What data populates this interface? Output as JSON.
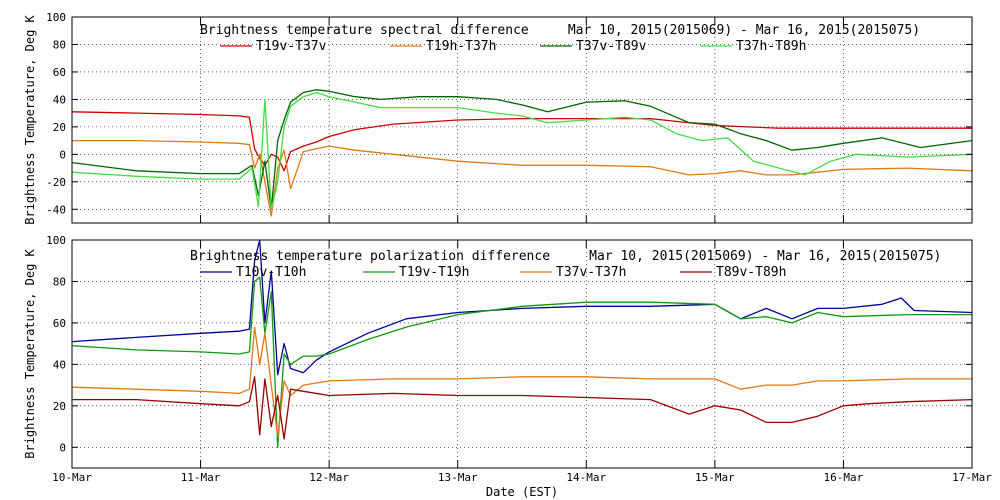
{
  "chart_data": [
    {
      "type": "line",
      "title": "Brightness temperature spectral difference     Mar 10, 2015(2015069) - Mar 16, 2015(2015075)",
      "ylabel": "Brightness Temperature, Deg K",
      "xlabel": "",
      "xlim": [
        0,
        7
      ],
      "ylim": [
        -50,
        100
      ],
      "yticks": [
        -40,
        -20,
        0,
        20,
        40,
        60,
        80,
        100
      ],
      "grid": true,
      "legend_position": "top",
      "series": [
        {
          "name": "T19v-T37v",
          "color": "#cc0000",
          "x": [
            0,
            0.5,
            1.0,
            1.3,
            1.38,
            1.42,
            1.46,
            1.5,
            1.55,
            1.6,
            1.65,
            1.7,
            1.8,
            1.9,
            2.0,
            2.2,
            2.5,
            3.0,
            3.5,
            4.0,
            4.5,
            4.7,
            5.0,
            5.5,
            6.0,
            6.5,
            7.0
          ],
          "y": [
            31,
            30,
            29,
            28,
            27,
            4,
            -3,
            -8,
            0,
            -2,
            -12,
            2,
            6,
            9,
            13,
            18,
            22,
            25,
            26,
            26,
            26,
            24,
            21,
            19,
            19,
            19,
            19
          ]
        },
        {
          "name": "T19h-T37h",
          "color": "#e07a10",
          "x": [
            0,
            0.5,
            1.0,
            1.3,
            1.38,
            1.42,
            1.46,
            1.5,
            1.55,
            1.6,
            1.65,
            1.7,
            1.8,
            1.9,
            2.0,
            2.2,
            2.5,
            3.0,
            3.5,
            4.0,
            4.5,
            4.8,
            5.0,
            5.2,
            5.4,
            5.6,
            5.8,
            6.0,
            6.5,
            7.0
          ],
          "y": [
            10,
            10,
            9,
            8,
            7,
            -10,
            0,
            -20,
            -45,
            -10,
            3,
            -25,
            2,
            4,
            6,
            3,
            0,
            -5,
            -8,
            -8,
            -9,
            -15,
            -14,
            -12,
            -15,
            -15,
            -13,
            -11,
            -10,
            -12
          ]
        },
        {
          "name": "T37v-T89v",
          "color": "#006400",
          "x": [
            0,
            0.5,
            1.0,
            1.3,
            1.4,
            1.45,
            1.5,
            1.55,
            1.6,
            1.65,
            1.7,
            1.8,
            1.9,
            2.0,
            2.2,
            2.4,
            2.7,
            3.0,
            3.3,
            3.5,
            3.7,
            4.0,
            4.3,
            4.5,
            4.8,
            5.0,
            5.2,
            5.4,
            5.6,
            5.8,
            6.0,
            6.3,
            6.6,
            7.0
          ],
          "y": [
            -6,
            -12,
            -14,
            -14,
            -8,
            -30,
            -5,
            -40,
            10,
            25,
            38,
            45,
            47,
            46,
            42,
            40,
            42,
            42,
            40,
            36,
            31,
            38,
            39,
            35,
            23,
            22,
            15,
            10,
            3,
            5,
            8,
            12,
            5,
            10
          ]
        },
        {
          "name": "T37h-T89h",
          "color": "#44dd44",
          "x": [
            0,
            0.5,
            1.0,
            1.3,
            1.4,
            1.45,
            1.5,
            1.55,
            1.6,
            1.65,
            1.7,
            1.8,
            1.9,
            2.0,
            2.2,
            2.4,
            2.7,
            3.0,
            3.3,
            3.5,
            3.7,
            4.0,
            4.3,
            4.5,
            4.7,
            4.9,
            5.1,
            5.3,
            5.5,
            5.7,
            5.9,
            6.1,
            6.5,
            7.0
          ],
          "y": [
            -13,
            -16,
            -18,
            -18,
            -10,
            -38,
            40,
            -40,
            -20,
            20,
            35,
            42,
            45,
            42,
            38,
            34,
            34,
            34,
            30,
            28,
            23,
            25,
            27,
            25,
            15,
            10,
            12,
            -5,
            -10,
            -15,
            -5,
            0,
            -2,
            0
          ]
        }
      ]
    },
    {
      "type": "line",
      "title": "Brightness temperature polarization difference     Mar 10, 2015(2015069) - Mar 16, 2015(2015075)",
      "ylabel": "Brightness Temperature, Deg K",
      "xlabel": "Date (EST)",
      "xlim": [
        0,
        7
      ],
      "ylim": [
        -10,
        100
      ],
      "yticks": [
        0,
        20,
        40,
        60,
        80,
        100
      ],
      "grid": true,
      "legend_position": "top",
      "series": [
        {
          "name": "T10v-T10h",
          "color": "#000099",
          "x": [
            0,
            0.5,
            1.0,
            1.3,
            1.38,
            1.42,
            1.46,
            1.5,
            1.55,
            1.6,
            1.65,
            1.7,
            1.8,
            1.9,
            2.0,
            2.3,
            2.6,
            3.0,
            3.5,
            4.0,
            4.5,
            5.0,
            5.2,
            5.4,
            5.6,
            5.8,
            6.0,
            6.3,
            6.45,
            6.55,
            7.0
          ],
          "y": [
            51,
            53,
            55,
            56,
            57,
            90,
            100,
            60,
            85,
            35,
            50,
            38,
            36,
            42,
            46,
            55,
            62,
            65,
            67,
            68,
            68,
            69,
            62,
            67,
            62,
            67,
            67,
            69,
            72,
            66,
            65
          ]
        },
        {
          "name": "T19v-T19h",
          "color": "#119911",
          "x": [
            0,
            0.5,
            1.0,
            1.3,
            1.38,
            1.42,
            1.46,
            1.5,
            1.55,
            1.6,
            1.65,
            1.7,
            1.8,
            1.9,
            2.0,
            2.3,
            2.6,
            3.0,
            3.5,
            4.0,
            4.5,
            5.0,
            5.2,
            5.4,
            5.6,
            5.8,
            6.0,
            6.5,
            7.0
          ],
          "y": [
            49,
            47,
            46,
            45,
            46,
            80,
            82,
            55,
            75,
            0,
            45,
            40,
            44,
            44,
            45,
            52,
            58,
            64,
            68,
            70,
            70,
            69,
            62,
            63,
            60,
            65,
            63,
            64,
            64
          ]
        },
        {
          "name": "T37v-T37h",
          "color": "#e07a10",
          "x": [
            0,
            0.5,
            1.0,
            1.3,
            1.38,
            1.42,
            1.46,
            1.5,
            1.55,
            1.6,
            1.65,
            1.7,
            1.8,
            2.0,
            2.5,
            3.0,
            3.5,
            4.0,
            4.5,
            5.0,
            5.2,
            5.4,
            5.6,
            5.8,
            6.0,
            6.5,
            7.0
          ],
          "y": [
            29,
            28,
            27,
            26,
            28,
            58,
            40,
            55,
            30,
            5,
            32,
            25,
            30,
            32,
            33,
            33,
            34,
            34,
            33,
            33,
            28,
            30,
            30,
            32,
            32,
            33,
            33
          ]
        },
        {
          "name": "T89v-T89h",
          "color": "#990000",
          "x": [
            0,
            0.5,
            1.0,
            1.3,
            1.38,
            1.42,
            1.46,
            1.5,
            1.55,
            1.6,
            1.65,
            1.7,
            1.8,
            2.0,
            2.5,
            3.0,
            3.5,
            4.0,
            4.5,
            4.8,
            5.0,
            5.2,
            5.4,
            5.6,
            5.8,
            6.0,
            6.2,
            6.5,
            7.0
          ],
          "y": [
            23,
            23,
            21,
            20,
            22,
            34,
            6,
            33,
            10,
            25,
            4,
            28,
            27,
            25,
            26,
            25,
            25,
            24,
            23,
            16,
            20,
            18,
            12,
            12,
            15,
            20,
            21,
            22,
            23
          ]
        }
      ]
    }
  ],
  "xaxis": {
    "ticks": [
      "10-Mar",
      "11-Mar",
      "12-Mar",
      "13-Mar",
      "14-Mar",
      "15-Mar",
      "16-Mar",
      "17-Mar"
    ],
    "label": "Date (EST)"
  }
}
